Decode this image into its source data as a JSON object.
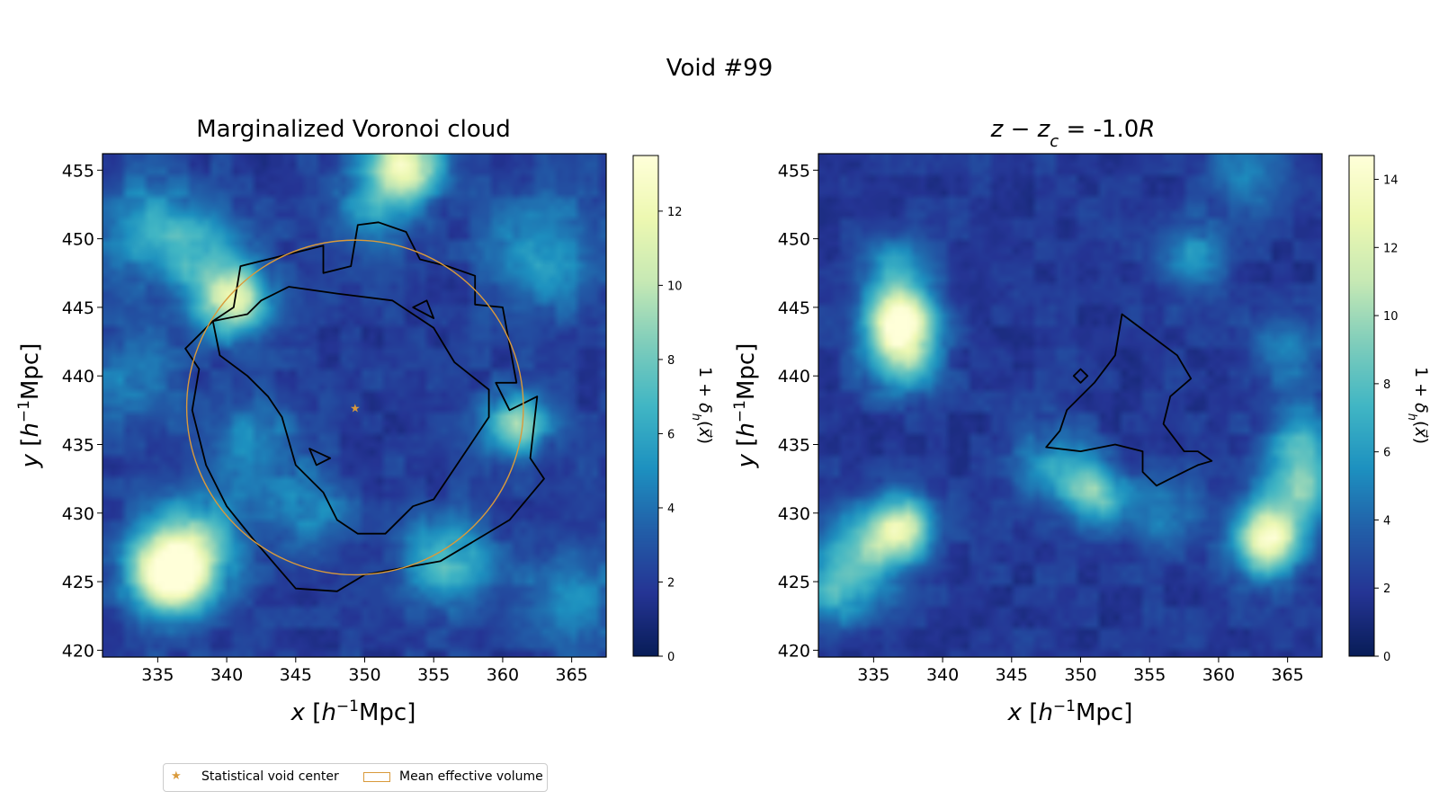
{
  "figure": {
    "title": "Void #99"
  },
  "legend": {
    "items": [
      {
        "label": "Statistical void center",
        "marker": "star",
        "color": "#d99a3b"
      },
      {
        "label": "Mean effective volume",
        "marker": "open-rectangle",
        "color": "#d99a3b"
      }
    ]
  },
  "colors": {
    "accent": "#d99a3b",
    "contour": "#000000",
    "colormap": "YlGnBu"
  },
  "chart_data": [
    {
      "type": "heatmap",
      "title": "Marginalized Voronoi cloud",
      "xlabel": "x [h⁻¹Mpc]",
      "ylabel": "y [h⁻¹Mpc]",
      "xlim": [
        331,
        367.5
      ],
      "ylim": [
        419.5,
        456.2
      ],
      "xticks": [
        335,
        340,
        345,
        350,
        355,
        360,
        365
      ],
      "yticks": [
        420,
        425,
        430,
        435,
        440,
        445,
        450,
        455
      ],
      "colorbar": {
        "label": "1 + δ_h(x⃗)",
        "range": [
          0,
          13.5
        ],
        "ticks": [
          0,
          2,
          4,
          6,
          8,
          10,
          12
        ]
      },
      "density_peaks": [
        {
          "x": 336,
          "y": 425.5,
          "value": 13,
          "sigma": 2.0
        },
        {
          "x": 337.5,
          "y": 428,
          "value": 5,
          "sigma": 2.5
        },
        {
          "x": 353,
          "y": 455.5,
          "value": 10,
          "sigma": 1.7
        },
        {
          "x": 351,
          "y": 452.5,
          "value": 4,
          "sigma": 2.0
        },
        {
          "x": 340.5,
          "y": 445.5,
          "value": 9,
          "sigma": 1.8
        },
        {
          "x": 338,
          "y": 449,
          "value": 4,
          "sigma": 2.2
        },
        {
          "x": 334,
          "y": 451,
          "value": 3.5,
          "sigma": 2.5
        },
        {
          "x": 361,
          "y": 436.5,
          "value": 7,
          "sigma": 1.6
        },
        {
          "x": 363,
          "y": 449,
          "value": 3.5,
          "sigma": 3.0
        },
        {
          "x": 356,
          "y": 426.5,
          "value": 5,
          "sigma": 2.2
        },
        {
          "x": 365,
          "y": 424,
          "value": 3,
          "sigma": 2.5
        },
        {
          "x": 342,
          "y": 435,
          "value": 3,
          "sigma": 2.5
        },
        {
          "x": 346,
          "y": 430,
          "value": 3,
          "sigma": 2.0
        },
        {
          "x": 333,
          "y": 440,
          "value": 2.5,
          "sigma": 2.5
        }
      ],
      "contours": [
        [
          [
            341,
            448
          ],
          [
            347,
            449.5
          ],
          [
            347,
            447.5
          ],
          [
            349,
            448
          ],
          [
            349.5,
            451
          ],
          [
            351,
            451.2
          ],
          [
            353,
            450.5
          ],
          [
            354,
            448.5
          ],
          [
            356,
            448
          ],
          [
            358,
            447.3
          ],
          [
            358,
            445.2
          ],
          [
            360,
            445
          ],
          [
            361,
            439.5
          ],
          [
            359.5,
            439.5
          ],
          [
            360.5,
            437.5
          ],
          [
            362.5,
            438.5
          ],
          [
            362,
            434
          ],
          [
            363,
            432.5
          ],
          [
            360.5,
            429.5
          ],
          [
            355.5,
            426.5
          ],
          [
            350,
            425.5
          ],
          [
            348,
            424.3
          ],
          [
            345,
            424.5
          ],
          [
            342,
            428
          ],
          [
            340,
            430.5
          ],
          [
            338.5,
            433.5
          ],
          [
            337.5,
            437.5
          ],
          [
            338,
            440.5
          ],
          [
            337,
            442
          ],
          [
            339,
            444
          ],
          [
            340.5,
            445
          ],
          [
            341,
            448
          ]
        ],
        [
          [
            344.5,
            446.5
          ],
          [
            348,
            446
          ],
          [
            352,
            445.5
          ],
          [
            355,
            443.5
          ],
          [
            356.5,
            441
          ],
          [
            359,
            439
          ],
          [
            359,
            437
          ],
          [
            357,
            434
          ],
          [
            355,
            431
          ],
          [
            353.5,
            430.5
          ],
          [
            351.5,
            428.5
          ],
          [
            349.5,
            428.5
          ],
          [
            348,
            429.5
          ],
          [
            347,
            431.5
          ],
          [
            345,
            433.5
          ],
          [
            344,
            437
          ],
          [
            343,
            438.5
          ],
          [
            341.5,
            440
          ],
          [
            339.5,
            441.5
          ],
          [
            339,
            444
          ],
          [
            341.5,
            444.5
          ],
          [
            342.5,
            445.5
          ],
          [
            344.5,
            446.5
          ]
        ],
        [
          [
            353.5,
            445
          ],
          [
            355,
            444.2
          ],
          [
            354.5,
            445.5
          ],
          [
            353.5,
            445
          ]
        ],
        [
          [
            346,
            434.7
          ],
          [
            347.5,
            434
          ],
          [
            346.5,
            433.5
          ],
          [
            346,
            434.7
          ]
        ]
      ],
      "void_center": {
        "x": 349.3,
        "y": 437.7
      },
      "effective_circle": {
        "x": 349.3,
        "y": 437.7,
        "r": 12.2
      }
    },
    {
      "type": "heatmap",
      "title": "z − z_c = -1.0R",
      "xlabel": "x [h⁻¹Mpc]",
      "ylabel": "y [h⁻¹Mpc]",
      "xlim": [
        331,
        367.5
      ],
      "ylim": [
        419.5,
        456.2
      ],
      "xticks": [
        335,
        340,
        345,
        350,
        355,
        360,
        365
      ],
      "yticks": [
        420,
        425,
        430,
        435,
        440,
        445,
        450,
        455
      ],
      "colorbar": {
        "label": "1 + δ_h(x⃗)",
        "range": [
          0,
          14.7
        ],
        "ticks": [
          0,
          2,
          4,
          6,
          8,
          10,
          12,
          14
        ]
      },
      "density_peaks": [
        {
          "x": 337,
          "y": 444,
          "value": 13,
          "sigma": 1.7
        },
        {
          "x": 337,
          "y": 441,
          "value": 6,
          "sigma": 1.8
        },
        {
          "x": 336.5,
          "y": 448,
          "value": 4,
          "sigma": 1.6
        },
        {
          "x": 337,
          "y": 429,
          "value": 9,
          "sigma": 1.6
        },
        {
          "x": 334,
          "y": 427,
          "value": 6,
          "sigma": 2.3
        },
        {
          "x": 332,
          "y": 424,
          "value": 4,
          "sigma": 1.6
        },
        {
          "x": 363.5,
          "y": 428,
          "value": 12,
          "sigma": 1.7
        },
        {
          "x": 366,
          "y": 432,
          "value": 7,
          "sigma": 2.0
        },
        {
          "x": 366,
          "y": 436,
          "value": 4,
          "sigma": 1.6
        },
        {
          "x": 351,
          "y": 431.5,
          "value": 7,
          "sigma": 1.5
        },
        {
          "x": 348,
          "y": 433.5,
          "value": 4,
          "sigma": 2.0
        },
        {
          "x": 356,
          "y": 430,
          "value": 3,
          "sigma": 2.0
        },
        {
          "x": 358,
          "y": 449,
          "value": 3.5,
          "sigma": 1.8
        },
        {
          "x": 362,
          "y": 455,
          "value": 3,
          "sigma": 2.0
        },
        {
          "x": 365,
          "y": 442,
          "value": 3.5,
          "sigma": 1.8
        }
      ],
      "contours": [
        [
          [
            353,
            444.5
          ],
          [
            355,
            443
          ],
          [
            357,
            441.5
          ],
          [
            358,
            439.8
          ],
          [
            356.5,
            438.5
          ],
          [
            356,
            436.5
          ],
          [
            357.5,
            434.5
          ],
          [
            358.5,
            434.5
          ],
          [
            359.5,
            433.8
          ],
          [
            358.5,
            433.5
          ],
          [
            356.5,
            432.5
          ],
          [
            355.5,
            432
          ],
          [
            354.5,
            433
          ],
          [
            354.5,
            434.5
          ],
          [
            352.5,
            435
          ],
          [
            350,
            434.5
          ],
          [
            347.5,
            434.8
          ],
          [
            348.5,
            436
          ],
          [
            349,
            437.5
          ],
          [
            351,
            439.5
          ],
          [
            352.5,
            441.5
          ],
          [
            353,
            444.5
          ]
        ],
        [
          [
            350,
            440.5
          ],
          [
            350.5,
            440
          ],
          [
            350,
            439.5
          ],
          [
            349.5,
            440
          ],
          [
            350,
            440.5
          ]
        ]
      ]
    }
  ]
}
